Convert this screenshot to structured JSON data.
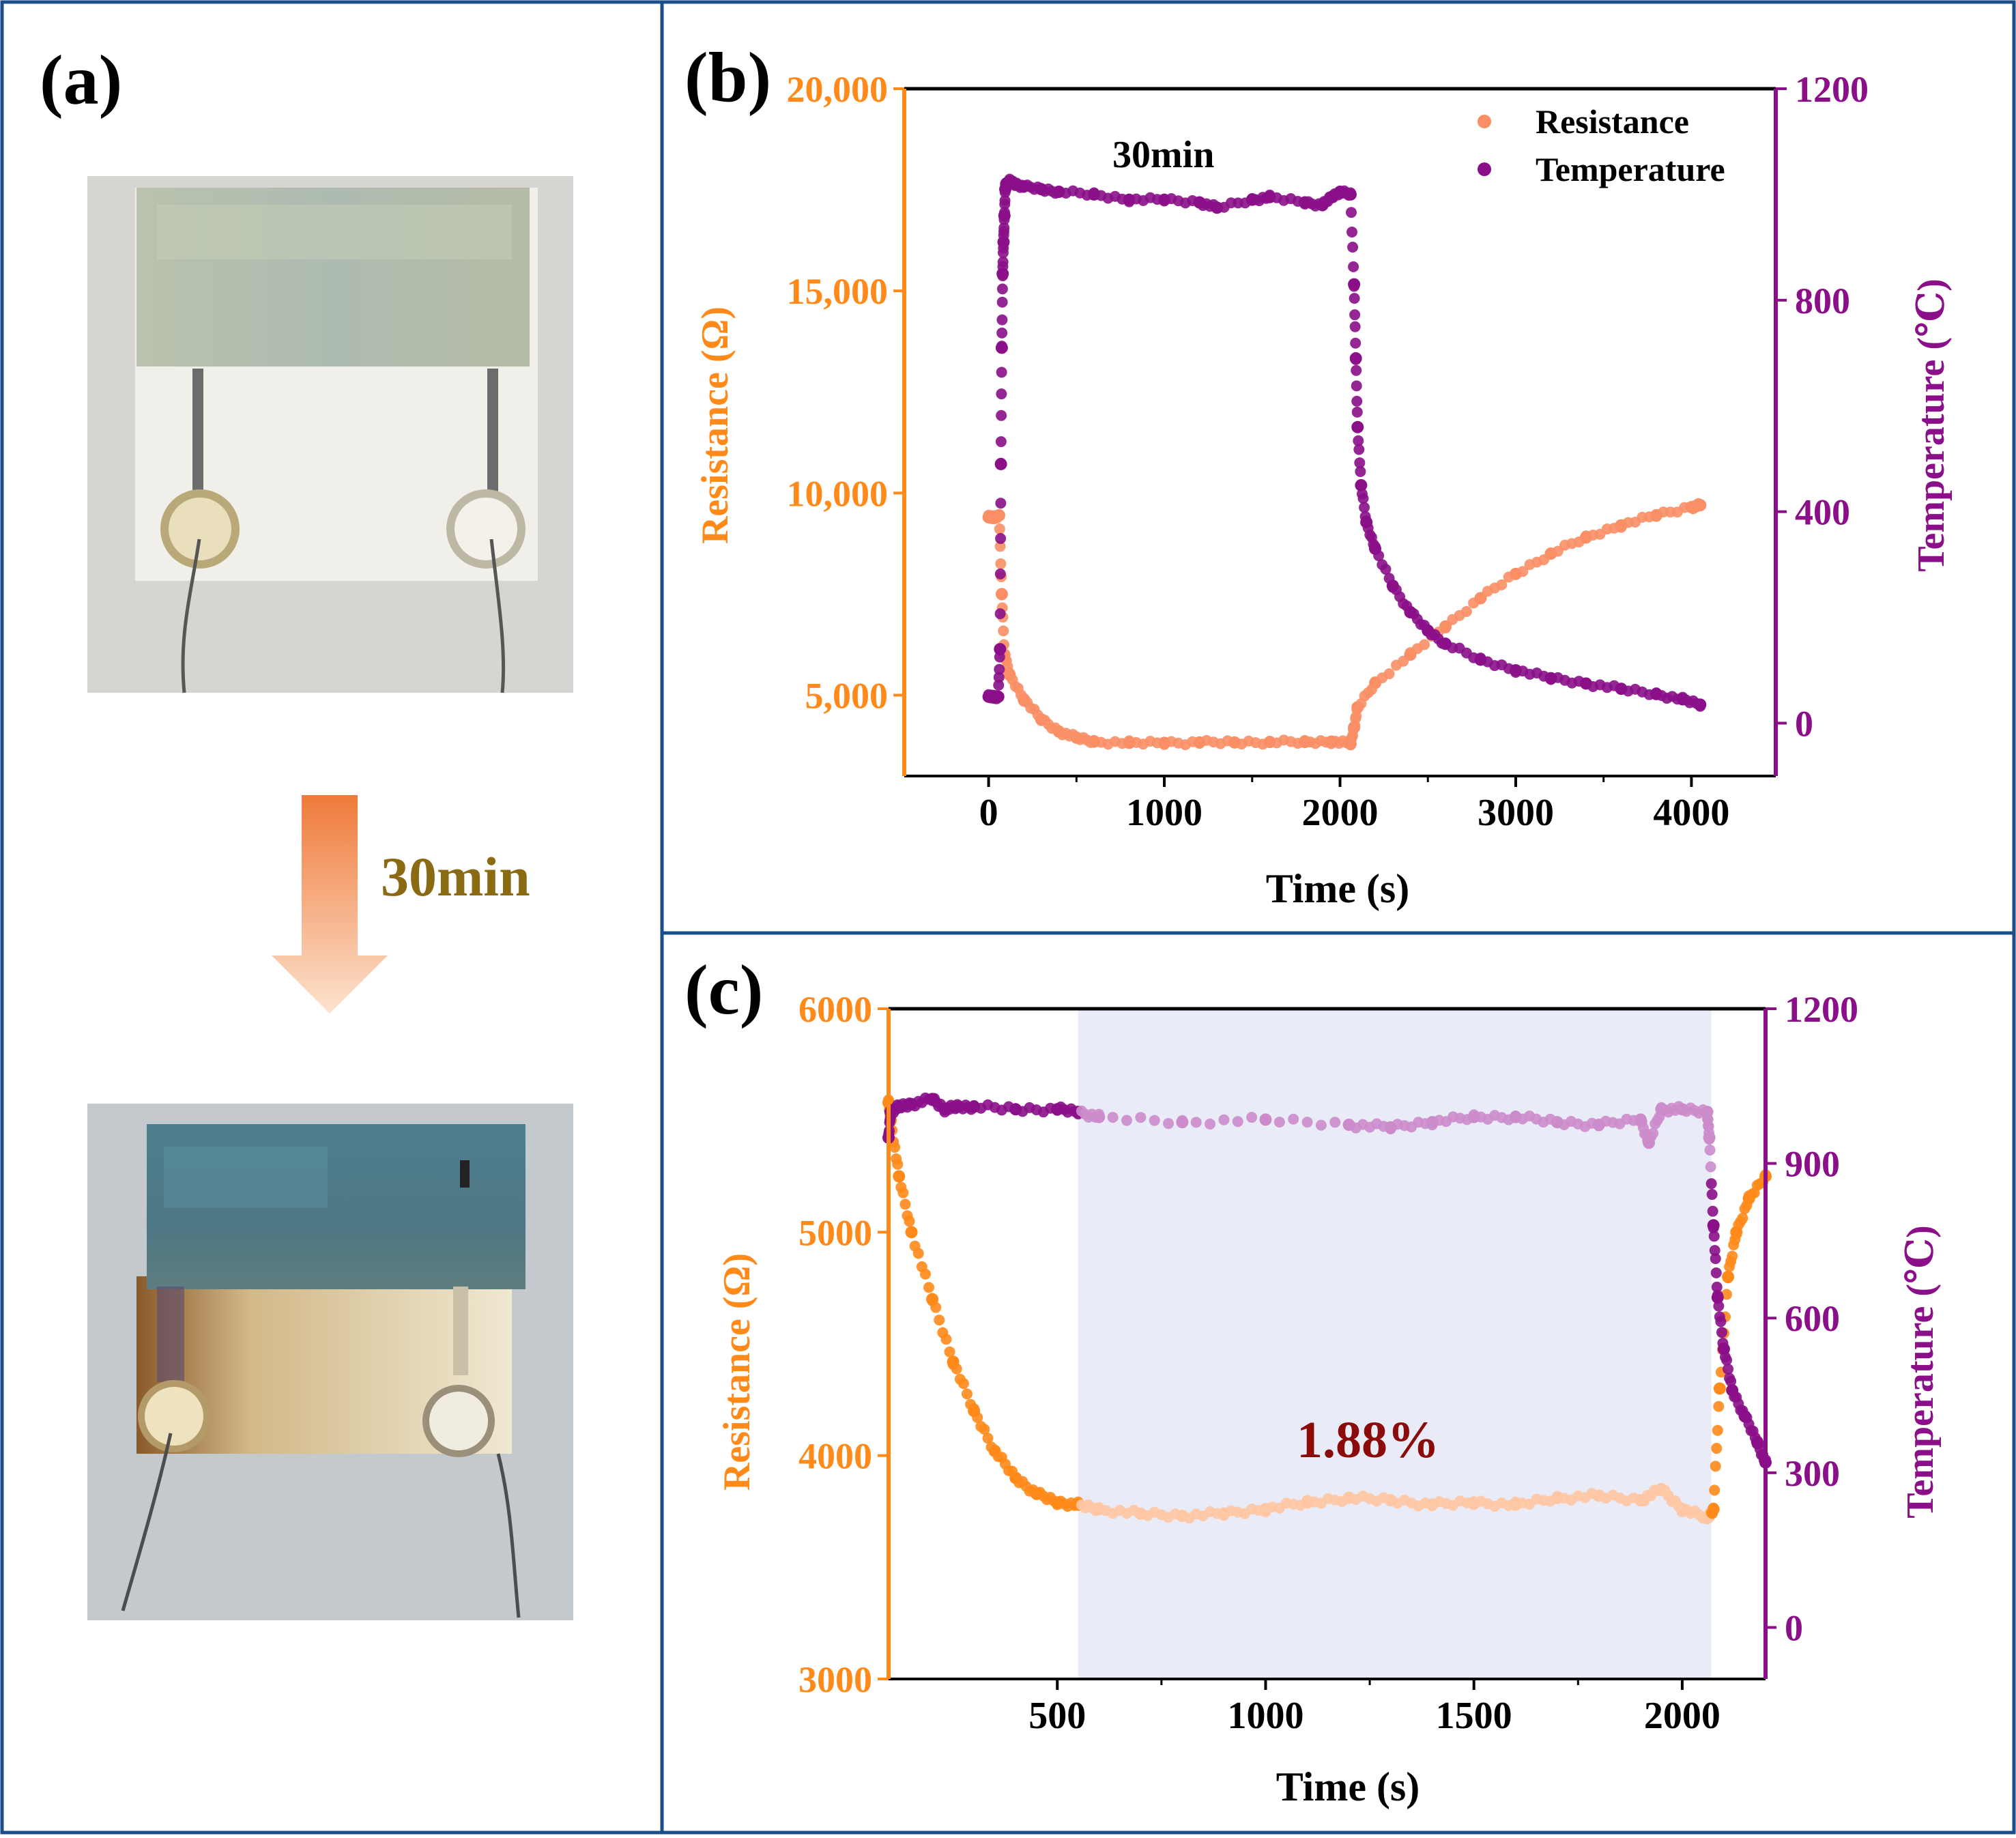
{
  "colors": {
    "frame": "#1c4e8a",
    "resistance": "#ff8a1a",
    "resistance_light": "#fa8f66",
    "resistance_faint": "#ffc6a3",
    "temperature": "#8a0f88",
    "temperature_faint": "#cc8ccc",
    "shade": "#e9ebf6",
    "annotation": "#8b0a0a",
    "arrow_label": "#8a6a12"
  },
  "panel_a": {
    "label": "(a)",
    "arrow_label": "30min",
    "photo_before": "sensor-before-photo",
    "photo_after": "sensor-after-photo"
  },
  "chart_data": [
    {
      "id": "b",
      "type": "scatter",
      "panel_label": "(b)",
      "annotation": "30min",
      "xlabel": "Time (s)",
      "ylabel_left": "Resistance (Ω)",
      "ylabel_right": "Temperature (℃)",
      "xlim": [
        -480,
        4480
      ],
      "ylim_left": [
        3000,
        20000
      ],
      "ylim_right": [
        -100,
        1200
      ],
      "xticks": [
        0,
        1000,
        2000,
        3000,
        4000
      ],
      "xtick_labels": [
        "0",
        "1000",
        "2000",
        "3000",
        "4000"
      ],
      "yticks_left": [
        5000,
        10000,
        15000,
        20000
      ],
      "ytick_labels_left": [
        "5,000",
        "10,000",
        "15,000",
        "20,000"
      ],
      "yticks_right": [
        0,
        400,
        800,
        1200
      ],
      "ytick_labels_right": [
        "0",
        "400",
        "800",
        "1200"
      ],
      "legend": [
        "Resistance",
        "Temperature"
      ],
      "legend_position": "top-right",
      "series": [
        {
          "name": "Resistance",
          "axis": "left",
          "x": [
            0,
            30,
            60,
            75,
            90,
            120,
            200,
            300,
            400,
            500,
            600,
            800,
            1000,
            1200,
            1400,
            1600,
            1800,
            1950,
            2060,
            2080,
            2100,
            2200,
            2400,
            2600,
            2800,
            3000,
            3200,
            3400,
            3600,
            3800,
            4000,
            4050
          ],
          "y": [
            9400,
            9400,
            9450,
            7500,
            6000,
            5500,
            4900,
            4400,
            4100,
            3950,
            3850,
            3820,
            3820,
            3830,
            3830,
            3840,
            3840,
            3850,
            3800,
            4200,
            4700,
            5300,
            6000,
            6700,
            7400,
            8000,
            8500,
            8900,
            9200,
            9450,
            9650,
            9700
          ]
        },
        {
          "name": "Temperature",
          "axis": "right",
          "x": [
            0,
            30,
            55,
            65,
            70,
            75,
            80,
            85,
            90,
            95,
            100,
            120,
            150,
            200,
            300,
            400,
            600,
            800,
            1000,
            1200,
            1300,
            1500,
            1600,
            1800,
            1900,
            1950,
            2000,
            2060,
            2080,
            2090,
            2100,
            2120,
            2150,
            2200,
            2300,
            2400,
            2500,
            2600,
            2800,
            3000,
            3200,
            3400,
            3600,
            3800,
            3950,
            4050
          ],
          "y": [
            50,
            50,
            50,
            140,
            490,
            710,
            850,
            910,
            960,
            1010,
            1020,
            1025,
            1020,
            1015,
            1010,
            1005,
            1000,
            990,
            990,
            985,
            975,
            990,
            995,
            985,
            980,
            995,
            1005,
            1000,
            830,
            690,
            560,
            450,
            380,
            330,
            260,
            210,
            175,
            150,
            120,
            100,
            85,
            75,
            65,
            55,
            45,
            35
          ]
        }
      ]
    },
    {
      "id": "c",
      "type": "scatter",
      "panel_label": "(c)",
      "annotation": "1.88%",
      "xlabel": "Time (s)",
      "ylabel_left": "Resistance (Ω)",
      "ylabel_right": "Temperature (℃)",
      "xlim": [
        95,
        2200
      ],
      "ylim_left": [
        3000,
        6000
      ],
      "ylim_right": [
        -100,
        1200
      ],
      "xticks": [
        500,
        1000,
        1500,
        2000
      ],
      "xtick_labels": [
        "500",
        "1000",
        "1500",
        "2000"
      ],
      "yticks_left": [
        3000,
        4000,
        5000,
        6000
      ],
      "ytick_labels_left": [
        "3000",
        "4000",
        "5000",
        "6000"
      ],
      "yticks_right": [
        0,
        300,
        600,
        900,
        1200
      ],
      "ytick_labels_right": [
        "0",
        "300",
        "600",
        "900",
        "1200"
      ],
      "shaded_x_range": [
        550,
        2070
      ],
      "series": [
        {
          "name": "Resistance",
          "axis": "left",
          "x": [
            95,
            100,
            120,
            150,
            200,
            250,
            300,
            350,
            400,
            450,
            500,
            550,
            600,
            700,
            800,
            900,
            1000,
            1100,
            1200,
            1300,
            1400,
            1500,
            1600,
            1700,
            1800,
            1900,
            1950,
            2000,
            2060,
            2075,
            2090,
            2110,
            2130,
            2160,
            2200
          ],
          "y": [
            5580,
            5500,
            5250,
            5000,
            4700,
            4420,
            4200,
            4020,
            3900,
            3830,
            3790,
            3780,
            3760,
            3740,
            3730,
            3740,
            3760,
            3790,
            3810,
            3800,
            3780,
            3790,
            3780,
            3810,
            3820,
            3800,
            3850,
            3760,
            3720,
            3760,
            4300,
            4800,
            5000,
            5150,
            5250
          ]
        },
        {
          "name": "Temperature",
          "axis": "right",
          "x": [
            95,
            100,
            120,
            150,
            200,
            230,
            260,
            300,
            400,
            500,
            550,
            600,
            800,
            1000,
            1200,
            1300,
            1400,
            1500,
            1600,
            1700,
            1800,
            1900,
            1920,
            1950,
            2000,
            2060,
            2065,
            2075,
            2085,
            2100,
            2120,
            2150,
            2180,
            2200
          ],
          "y": [
            950,
            1000,
            1010,
            1015,
            1025,
            1005,
            1010,
            1010,
            1005,
            1005,
            1000,
            990,
            980,
            985,
            975,
            970,
            980,
            990,
            990,
            980,
            975,
            985,
            940,
            1005,
            1005,
            1000,
            950,
            780,
            640,
            540,
            460,
            410,
            360,
            320
          ]
        }
      ]
    }
  ]
}
